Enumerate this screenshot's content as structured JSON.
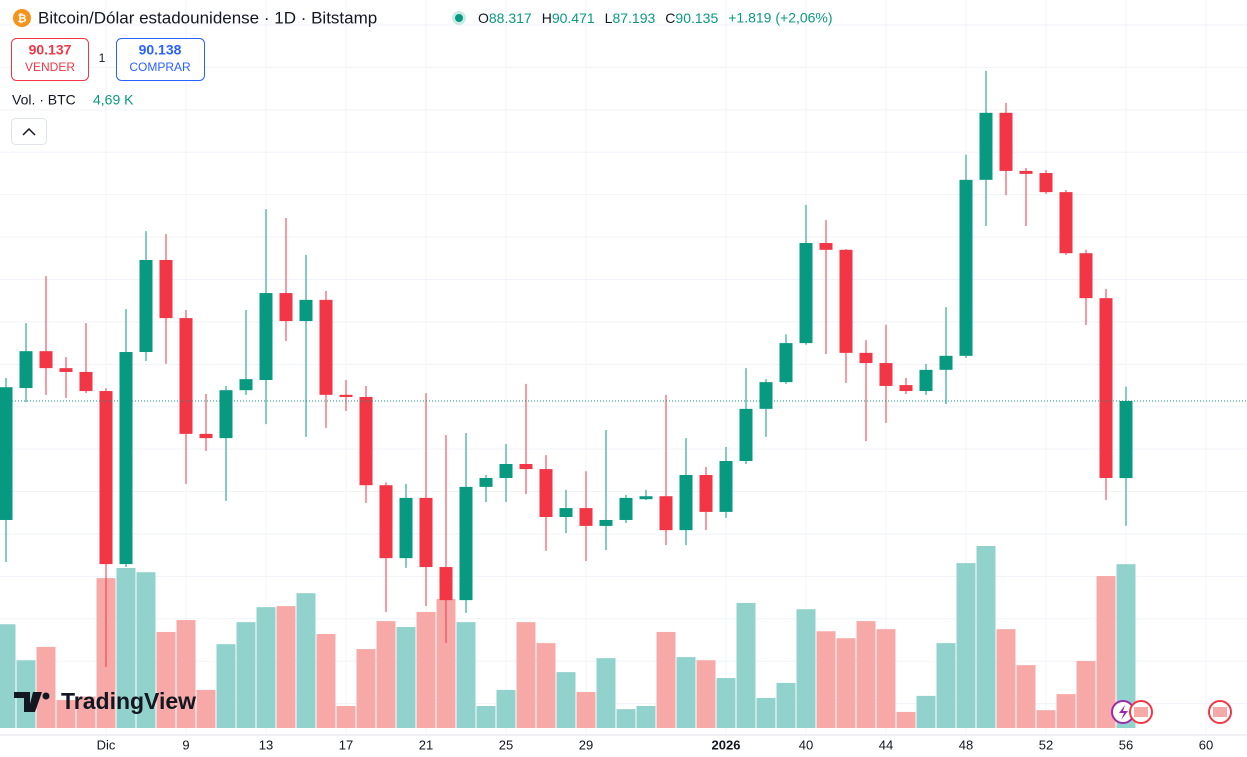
{
  "header": {
    "symbol": "Bitcoin/Dólar estadounidense · 1D · Bitstamp",
    "ohlc": [
      {
        "label": "O",
        "value": "88.317"
      },
      {
        "label": "H",
        "value": "90.471"
      },
      {
        "label": "L",
        "value": "87.193"
      },
      {
        "label": "C",
        "value": "90.135"
      }
    ],
    "change": "+1.819 (+2,06%)"
  },
  "trade": {
    "sell_price": "90.137",
    "sell_label": "VENDER",
    "quantity": "1",
    "buy_price": "90.138",
    "buy_label": "COMPRAR"
  },
  "volume_legend": {
    "label": "Vol. · BTC",
    "value": "4,69 K"
  },
  "brand": "TradingView",
  "chart_data": {
    "type": "candlestick",
    "open": [
      87.33,
      90.44,
      91.31,
      90.91,
      90.82,
      90.37,
      86.29,
      91.29,
      93.46,
      92.09,
      89.36,
      89.26,
      90.39,
      90.63,
      92.68,
      92.02,
      92.52,
      90.28,
      90.23,
      88.15,
      86.43,
      87.85,
      86.22,
      85.44,
      88.11,
      88.32,
      88.65,
      88.53,
      87.4,
      87.61,
      87.19,
      87.33,
      87.82,
      87.89,
      87.09,
      88.39,
      87.52,
      88.72,
      89.95,
      90.58,
      91.5,
      93.86,
      93.7,
      91.27,
      91.03,
      90.51,
      90.37,
      90.87,
      91.2,
      95.35,
      96.93,
      95.56,
      95.51,
      95.06,
      93.62,
      92.56,
      88.317
    ],
    "high": [
      90.68,
      91.97,
      93.08,
      91.17,
      91.97,
      90.44,
      92.3,
      94.14,
      94.07,
      92.28,
      90.3,
      90.49,
      92.28,
      94.66,
      94.45,
      93.58,
      92.73,
      90.63,
      90.49,
      88.22,
      88.18,
      90.32,
      89.33,
      89.38,
      88.39,
      89.12,
      90.54,
      88.86,
      88.04,
      88.48,
      89.45,
      87.92,
      88.04,
      90.28,
      89.26,
      88.58,
      89.05,
      90.91,
      90.65,
      91.71,
      94.76,
      94.4,
      93.72,
      91.57,
      91.93,
      90.68,
      91.01,
      92.35,
      95.94,
      97.92,
      97.16,
      95.63,
      95.58,
      95.11,
      93.7,
      92.78,
      90.471
    ],
    "low": [
      86.34,
      90.11,
      90.28,
      90.21,
      90.32,
      83.86,
      86.22,
      91.08,
      91.01,
      88.18,
      88.96,
      87.78,
      90.28,
      89.59,
      91.55,
      89.29,
      89.5,
      89.9,
      87.73,
      85.16,
      86.2,
      85.3,
      84.43,
      85.14,
      87.75,
      87.75,
      87.94,
      86.6,
      87.02,
      86.36,
      86.62,
      87.26,
      87.8,
      86.74,
      86.74,
      87.09,
      87.38,
      88.65,
      89.29,
      90.54,
      91.46,
      91.24,
      90.56,
      89.19,
      89.62,
      90.3,
      90.28,
      90.06,
      91.15,
      94.26,
      94.99,
      94.26,
      95.02,
      93.58,
      91.93,
      87.8,
      87.193
    ],
    "close": [
      90.46,
      91.31,
      90.91,
      90.82,
      90.37,
      86.29,
      91.29,
      93.46,
      92.09,
      89.36,
      89.26,
      90.39,
      90.65,
      92.68,
      92.02,
      92.52,
      90.28,
      90.23,
      88.15,
      86.43,
      87.85,
      86.22,
      85.44,
      88.11,
      88.32,
      88.65,
      88.53,
      87.4,
      87.61,
      87.19,
      87.33,
      87.85,
      87.89,
      87.09,
      88.39,
      87.52,
      88.72,
      89.95,
      90.58,
      91.5,
      93.86,
      93.7,
      91.27,
      91.03,
      90.49,
      90.37,
      90.87,
      91.2,
      95.35,
      96.93,
      95.56,
      95.49,
      95.06,
      93.62,
      92.56,
      88.32,
      90.135
    ],
    "volume": [
      2.97,
      1.94,
      2.32,
      0.8,
      0.9,
      4.29,
      4.58,
      4.46,
      2.75,
      3.09,
      1.09,
      2.4,
      3.03,
      3.46,
      3.49,
      3.86,
      2.69,
      0.63,
      2.26,
      3.06,
      2.89,
      3.32,
      3.69,
      3.03,
      0.63,
      1.09,
      3.03,
      2.43,
      1.6,
      1.03,
      2.0,
      0.54,
      0.63,
      2.75,
      2.03,
      1.94,
      1.43,
      3.58,
      0.86,
      1.29,
      3.4,
      2.77,
      2.57,
      3.06,
      2.83,
      0.46,
      0.92,
      2.43,
      4.72,
      5.21,
      2.83,
      1.8,
      0.51,
      0.97,
      1.92,
      4.35,
      4.69
    ],
    "up_color": "#089981",
    "down_color": "#f23645",
    "volume_up_color": "#92d2cc",
    "volume_down_color": "#f7a9a7",
    "xlim": [
      -0.3,
      62.05
    ],
    "xticks": [
      {
        "value": 5,
        "label": "Dic"
      },
      9,
      13,
      17,
      21,
      25,
      29,
      {
        "value": 36,
        "label": "2026"
      },
      40,
      44,
      48,
      52,
      56,
      60
    ],
    "xtick_labels_extra": null,
    "ylim": [
      82.26,
      99.59
    ],
    "yticks": [
      83,
      84,
      85,
      86,
      87,
      88,
      89,
      90,
      91,
      92,
      93,
      94,
      95,
      96,
      97,
      98,
      99
    ],
    "y2lim": [
      0,
      15
    ],
    "grid": true
  }
}
